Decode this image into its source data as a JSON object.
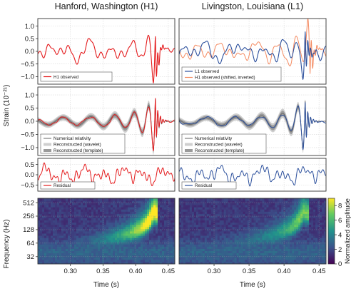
{
  "colors": {
    "h1": "#e41a1c",
    "l1": "#2b4f9c",
    "h1_shifted": "#f4895f",
    "nr": "#666666",
    "wavelet": "#cfcfcf",
    "template": "#9a9a9a",
    "cmap": [
      "#440154",
      "#3b528b",
      "#21918c",
      "#5ec962",
      "#fde725"
    ]
  },
  "titles": {
    "left": "Hanford, Washington (H1)",
    "right": "Livingston, Louisiana (L1)"
  },
  "labels": {
    "strain_ylabel": "Strain (10⁻²¹)",
    "freq_ylabel": "Frequency (Hz)",
    "time_xlabel": "Time (s)",
    "colorbar_label": "Normalized amplitude"
  },
  "legends": {
    "row1_left": [
      "H1 observed"
    ],
    "row1_right": [
      "L1 observed",
      "H1 observed (shifted, inverted)"
    ],
    "row2": [
      "Numerical relativity",
      "Reconstructed (wavelet)",
      "Reconstructed (template)"
    ],
    "row3_left": [
      "Residual"
    ],
    "row3_right": [
      "Residual"
    ]
  },
  "chart_data": [
    {
      "type": "line",
      "panel": "H1 observed",
      "x_range": [
        0.25,
        0.46
      ],
      "ylim": [
        -1.3,
        1.3
      ],
      "yticks": [
        -1.0,
        -0.5,
        0.0,
        0.5,
        1.0
      ],
      "grid": true,
      "series": [
        {
          "name": "H1 observed",
          "kind": "observed",
          "x": [
            0.26,
            0.27,
            0.28,
            0.29,
            0.3,
            0.31,
            0.32,
            0.33,
            0.34,
            0.35,
            0.36,
            0.37,
            0.38,
            0.39,
            0.4,
            0.41,
            0.42,
            0.43,
            0.44,
            0.45
          ],
          "y": [
            0.2,
            -0.5,
            0.4,
            0.2,
            -0.3,
            0.3,
            0.1,
            -0.4,
            0.3,
            0.1,
            0.3,
            -0.4,
            0.6,
            -0.6,
            0.9,
            -0.8,
            1.1,
            -1.0,
            0.5,
            0.1
          ]
        }
      ]
    },
    {
      "type": "line",
      "panel": "L1 observed",
      "x_range": [
        0.25,
        0.46
      ],
      "ylim": [
        -1.3,
        1.3
      ],
      "yticks": [
        -1.0,
        -0.5,
        0.0,
        0.5,
        1.0
      ],
      "grid": true,
      "series": [
        {
          "name": "L1 observed",
          "kind": "observed",
          "x": [
            0.26,
            0.27,
            0.28,
            0.29,
            0.3,
            0.31,
            0.32,
            0.33,
            0.34,
            0.35,
            0.36,
            0.37,
            0.38,
            0.39,
            0.4,
            0.41,
            0.42,
            0.43,
            0.44,
            0.45
          ],
          "y": [
            0.0,
            0.4,
            -0.3,
            0.5,
            0.2,
            -0.4,
            0.5,
            -0.5,
            0.2,
            -0.1,
            0.5,
            -0.5,
            0.4,
            -0.6,
            0.8,
            -0.9,
            1.0,
            -0.7,
            0.4,
            -0.2
          ]
        },
        {
          "name": "H1 observed (shifted, inverted)",
          "kind": "shifted",
          "x": [
            0.26,
            0.27,
            0.28,
            0.29,
            0.3,
            0.31,
            0.32,
            0.33,
            0.34,
            0.35,
            0.36,
            0.37,
            0.38,
            0.39,
            0.4,
            0.41,
            0.42,
            0.43,
            0.44,
            0.45
          ],
          "y": [
            -0.2,
            0.5,
            -0.4,
            -0.2,
            0.3,
            -0.3,
            -0.1,
            0.4,
            -0.3,
            -0.1,
            -0.3,
            0.4,
            -0.6,
            0.6,
            -0.9,
            0.8,
            -1.1,
            1.0,
            -0.5,
            -0.1
          ]
        }
      ]
    },
    {
      "type": "line",
      "panel": "H1 reconstructed",
      "x_range": [
        0.25,
        0.46
      ],
      "ylim": [
        -1.3,
        1.3
      ],
      "yticks": [
        -1.0,
        -0.5,
        0.0,
        0.5,
        1.0
      ],
      "grid": true,
      "series": [
        {
          "name": "Reconstructed (wavelet)",
          "kind": "wavelet",
          "x": [
            0.27,
            0.3,
            0.33,
            0.35,
            0.37,
            0.38,
            0.39,
            0.4,
            0.41,
            0.415,
            0.42,
            0.425,
            0.43,
            0.44
          ],
          "y": [
            0.1,
            0.15,
            0.2,
            0.25,
            0.35,
            0.45,
            0.6,
            0.8,
            0.95,
            1.0,
            1.05,
            0.9,
            0.5,
            0.2
          ]
        },
        {
          "name": "Reconstructed (template)",
          "kind": "template",
          "x": [
            0.27,
            0.3,
            0.33,
            0.35,
            0.37,
            0.38,
            0.39,
            0.4,
            0.41,
            0.415,
            0.42,
            0.425,
            0.43,
            0.44
          ],
          "y": [
            0.1,
            0.15,
            0.2,
            0.25,
            0.35,
            0.45,
            0.6,
            0.8,
            0.95,
            1.0,
            1.05,
            0.9,
            0.5,
            0.2
          ]
        },
        {
          "name": "Numerical relativity",
          "kind": "nr",
          "x": [
            0.27,
            0.3,
            0.33,
            0.35,
            0.37,
            0.38,
            0.39,
            0.4,
            0.41,
            0.415,
            0.42,
            0.425,
            0.43,
            0.44
          ],
          "y": [
            0.1,
            0.15,
            0.2,
            0.25,
            0.35,
            0.45,
            0.6,
            0.8,
            0.95,
            1.0,
            1.05,
            0.9,
            0.5,
            0.2
          ]
        },
        {
          "name": "H1 observed",
          "kind": "observed_filtered",
          "x": [
            0.27,
            0.3,
            0.33,
            0.35,
            0.37,
            0.38,
            0.39,
            0.4,
            0.41,
            0.415,
            0.42,
            0.425,
            0.43,
            0.44
          ],
          "y": [
            0.1,
            0.15,
            0.2,
            0.25,
            0.35,
            0.45,
            0.6,
            0.8,
            0.95,
            1.0,
            1.05,
            0.9,
            0.5,
            0.2
          ]
        }
      ]
    },
    {
      "type": "line",
      "panel": "L1 reconstructed",
      "x_range": [
        0.25,
        0.46
      ],
      "ylim": [
        -1.3,
        1.3
      ],
      "grid": true,
      "series": [
        {
          "name": "Reconstructed (wavelet)",
          "kind": "wavelet",
          "x": [
            0.27,
            0.3,
            0.33,
            0.35,
            0.37,
            0.38,
            0.39,
            0.4,
            0.41,
            0.415,
            0.42,
            0.425,
            0.43,
            0.44
          ],
          "y": [
            0.05,
            0.1,
            0.15,
            0.2,
            0.3,
            0.4,
            0.55,
            0.75,
            0.9,
            0.95,
            0.95,
            0.75,
            0.4,
            0.15
          ]
        },
        {
          "name": "Reconstructed (template)",
          "kind": "template",
          "x": [
            0.27,
            0.3,
            0.33,
            0.35,
            0.37,
            0.38,
            0.39,
            0.4,
            0.41,
            0.415,
            0.42,
            0.425,
            0.43,
            0.44
          ],
          "y": [
            0.05,
            0.1,
            0.15,
            0.2,
            0.3,
            0.4,
            0.55,
            0.75,
            0.9,
            0.95,
            0.95,
            0.75,
            0.4,
            0.15
          ]
        },
        {
          "name": "Numerical relativity",
          "kind": "nr",
          "x": [
            0.27,
            0.3,
            0.33,
            0.35,
            0.37,
            0.38,
            0.39,
            0.4,
            0.41,
            0.415,
            0.42,
            0.425,
            0.43,
            0.44
          ],
          "y": [
            0.05,
            0.1,
            0.15,
            0.2,
            0.3,
            0.4,
            0.55,
            0.75,
            0.9,
            0.95,
            0.95,
            0.75,
            0.4,
            0.15
          ]
        },
        {
          "name": "L1 observed",
          "kind": "observed_filtered",
          "x": [
            0.27,
            0.3,
            0.33,
            0.35,
            0.37,
            0.38,
            0.39,
            0.4,
            0.41,
            0.415,
            0.42,
            0.425,
            0.43,
            0.44
          ],
          "y": [
            0.05,
            0.1,
            0.15,
            0.2,
            0.3,
            0.4,
            0.55,
            0.75,
            0.9,
            0.95,
            0.95,
            0.75,
            0.4,
            0.15
          ]
        }
      ]
    },
    {
      "type": "line",
      "panel": "H1 residual",
      "x_range": [
        0.25,
        0.46
      ],
      "ylim": [
        -0.8,
        0.8
      ],
      "yticks": [
        -0.5,
        0.0,
        0.5
      ],
      "grid": true,
      "series": [
        {
          "name": "Residual",
          "kind": "residual",
          "x": [
            0.26,
            0.28,
            0.3,
            0.32,
            0.34,
            0.36,
            0.38,
            0.4,
            0.42,
            0.44
          ],
          "y": [
            0.3,
            -0.4,
            0.3,
            -0.3,
            0.4,
            -0.3,
            0.3,
            -0.4,
            0.3,
            -0.3
          ]
        }
      ]
    },
    {
      "type": "line",
      "panel": "L1 residual",
      "x_range": [
        0.25,
        0.46
      ],
      "ylim": [
        -0.8,
        0.8
      ],
      "grid": true,
      "series": [
        {
          "name": "Residual",
          "kind": "residual",
          "x": [
            0.26,
            0.28,
            0.3,
            0.32,
            0.34,
            0.36,
            0.38,
            0.4,
            0.42,
            0.44
          ],
          "y": [
            0.3,
            -0.3,
            0.3,
            -0.3,
            0.3,
            -0.3,
            0.4,
            -0.4,
            0.3,
            -0.3
          ]
        }
      ]
    },
    {
      "type": "heatmap",
      "panel": "H1 spectrogram",
      "x_range": [
        0.25,
        0.46
      ],
      "y_scale": "log2",
      "ylim": [
        22,
        640
      ],
      "yticks": [
        32,
        64,
        128,
        256,
        512
      ],
      "xticks": [
        0.3,
        0.35,
        0.4,
        0.45
      ],
      "track": {
        "x": [
          0.3,
          0.34,
          0.37,
          0.39,
          0.405,
          0.415,
          0.425,
          0.43
        ],
        "freq": [
          35,
          40,
          48,
          58,
          80,
          110,
          190,
          300
        ],
        "peak": 8.5
      }
    },
    {
      "type": "heatmap",
      "panel": "L1 spectrogram",
      "x_range": [
        0.25,
        0.46
      ],
      "y_scale": "log2",
      "ylim": [
        22,
        640
      ],
      "xticks": [
        0.3,
        0.35,
        0.4,
        0.45
      ],
      "track": {
        "x": [
          0.3,
          0.34,
          0.37,
          0.39,
          0.405,
          0.415,
          0.425,
          0.43
        ],
        "freq": [
          35,
          40,
          48,
          58,
          80,
          110,
          180,
          280
        ],
        "peak": 5.5
      }
    },
    {
      "type": "colorbar",
      "range": [
        0,
        9
      ],
      "ticks": [
        0,
        2,
        4,
        6,
        8
      ]
    }
  ]
}
